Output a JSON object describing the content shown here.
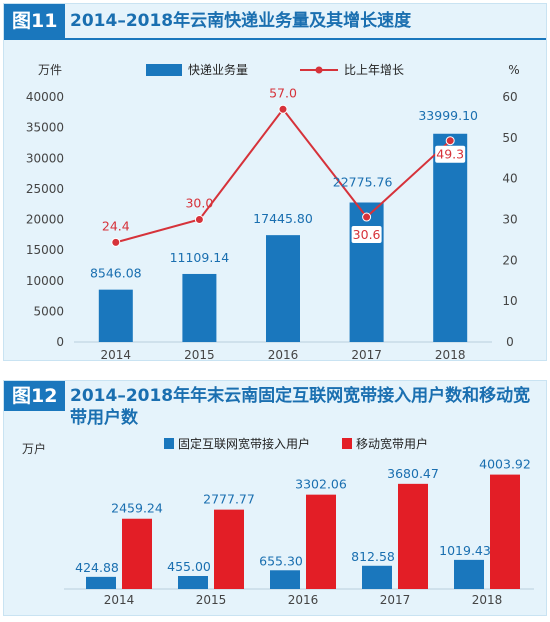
{
  "figures": [
    {
      "badge": "图11",
      "title": "2014–2018年云南快递业务量及其增长速度",
      "chart_data": {
        "type": "bar",
        "title": "2014–2018年云南快递业务量及其增长速度",
        "categories": [
          "2014",
          "2015",
          "2016",
          "2017",
          "2018"
        ],
        "series": [
          {
            "name": "快递业务量",
            "type": "bar",
            "axis": "left",
            "values": [
              8546.08,
              11109.14,
              17445.8,
              22775.76,
              33999.1
            ],
            "labels": [
              "8546.08",
              "11109.14",
              "17445.80",
              "22775.76",
              "33999.10"
            ],
            "color": "#1a77bd"
          },
          {
            "name": "比上年增长",
            "type": "line",
            "axis": "right",
            "values": [
              24.4,
              30.0,
              57.0,
              30.6,
              49.3
            ],
            "labels": [
              "24.4",
              "30.0",
              "57.0",
              "30.6",
              "49.3"
            ],
            "color": "#d6323a"
          }
        ],
        "ylabel": "万件",
        "ylim": [
          0,
          40000
        ],
        "yticks": [
          "0",
          "5000",
          "10000",
          "15000",
          "20000",
          "25000",
          "30000",
          "35000",
          "40000"
        ],
        "y2label": "%",
        "y2lim": [
          0,
          60
        ],
        "y2ticks": [
          "0",
          "10",
          "20",
          "30",
          "40",
          "50",
          "60"
        ],
        "legend": "top",
        "grid": false
      }
    },
    {
      "badge": "图12",
      "title": "2014–2018年年末云南固定互联网宽带接入用户数和移动宽带用户数",
      "chart_data": {
        "type": "bar",
        "title": "2014–2018年年末云南固定互联网宽带接入用户数和移动宽带用户数",
        "categories": [
          "2014",
          "2015",
          "2016",
          "2017",
          "2018"
        ],
        "series": [
          {
            "name": "固定互联网宽带接入用户",
            "values": [
              424.88,
              455.0,
              655.3,
              812.58,
              1019.43
            ],
            "labels": [
              "424.88",
              "455.00",
              "655.30",
              "812.58",
              "1019.43"
            ],
            "color": "#1a77bd"
          },
          {
            "name": "移动宽带用户",
            "values": [
              2459.24,
              2777.77,
              3302.06,
              3680.47,
              4003.92
            ],
            "labels": [
              "2459.24",
              "2777.77",
              "3302.06",
              "3680.47",
              "4003.92"
            ],
            "color": "#e31e26"
          }
        ],
        "ylabel": "万户",
        "ylim": [
          0,
          4200
        ],
        "legend": "top",
        "grid": false
      }
    }
  ]
}
